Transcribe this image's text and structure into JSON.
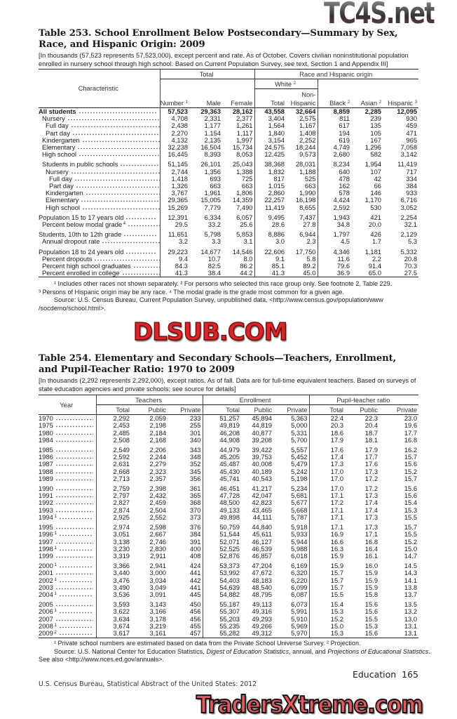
{
  "watermarks": {
    "top": "TC4S.net",
    "middle": "DLSUB.COM",
    "bottom": "TradersXtreme.com"
  },
  "t253": {
    "title": "Table 253. School Enrollment Below Postsecondary—Summary by Sex, Race, and Hispanic Origin: 2009",
    "headnote": "[In thousands (57,523 represents 57,523,000), except percent and rate. As of October. Covers civilian noninstitutional population enrolled in nursery school through high school. Based on Current Population Survey, see text, Section 1 and Appendix III]",
    "headers": {
      "characteristic": "Characteristic",
      "total": "Total",
      "race": "Race and Hispanic origin",
      "white": "White",
      "white_sup": "2",
      "number": "Number",
      "number_sup": "1",
      "male": "Male",
      "female": "Female",
      "wtotal": "Total",
      "nonhisp": "Non-Hispanic",
      "black": "Black",
      "black_sup": "2",
      "asian": "Asian",
      "asian_sup": "2",
      "hispanic": "Hispanic",
      "hispanic_sup": "3"
    },
    "rows": [
      {
        "label": "All students",
        "ind": 0,
        "bold": true,
        "v": [
          "57,523",
          "29,363",
          "28,162",
          "43,558",
          "32,664",
          "8,859",
          "2,285",
          "12,095"
        ]
      },
      {
        "label": "Nursery",
        "ind": 1,
        "v": [
          "4,708",
          "2,331",
          "2,377",
          "3,404",
          "2,575",
          "811",
          "239",
          "930"
        ]
      },
      {
        "label": "Full day",
        "ind": 2,
        "v": [
          "2,438",
          "1,177",
          "1,261",
          "1,564",
          "1,167",
          "617",
          "135",
          "459"
        ]
      },
      {
        "label": "Part day",
        "ind": 2,
        "v": [
          "2,270",
          "1,154",
          "1,117",
          "1,840",
          "1,408",
          "194",
          "105",
          "471"
        ]
      },
      {
        "label": "Kindergarten",
        "ind": 1,
        "v": [
          "4,132",
          "2,135",
          "1,997",
          "3,154",
          "2,252",
          "619",
          "167",
          "965"
        ]
      },
      {
        "label": "Elementary",
        "ind": 1,
        "v": [
          "32,238",
          "16,504",
          "15,734",
          "24,575",
          "18,244",
          "4,749",
          "1,296",
          "7,058"
        ]
      },
      {
        "label": "High school",
        "ind": 1,
        "v": [
          "16,445",
          "8,393",
          "8,053",
          "12,425",
          "9,573",
          "2,680",
          "582",
          "3,142"
        ]
      },
      {
        "label": "Students in public schools",
        "ind": 1,
        "gap": true,
        "v": [
          "51,145",
          "26,101",
          "25,043",
          "38,368",
          "28,031",
          "8,234",
          "1,954",
          "11,419"
        ]
      },
      {
        "label": "Nursery",
        "ind": 2,
        "v": [
          "2,744",
          "1,356",
          "1,388",
          "1,832",
          "1,188",
          "640",
          "107",
          "717"
        ]
      },
      {
        "label": "Full day",
        "ind": 3,
        "v": [
          "1,418",
          "693",
          "725",
          "817",
          "525",
          "478",
          "42",
          "334"
        ]
      },
      {
        "label": "Part day",
        "ind": 3,
        "v": [
          "1,326",
          "663",
          "663",
          "1,015",
          "663",
          "162",
          "66",
          "384"
        ]
      },
      {
        "label": "Kindergarten",
        "ind": 2,
        "v": [
          "3,767",
          "1,961",
          "1,806",
          "2,860",
          "1,990",
          "578",
          "146",
          "933"
        ]
      },
      {
        "label": "Elementary",
        "ind": 2,
        "v": [
          "29,365",
          "15,005",
          "14,359",
          "22,257",
          "16,198",
          "4,424",
          "1,170",
          "6,716"
        ]
      },
      {
        "label": "High school",
        "ind": 2,
        "v": [
          "15,269",
          "7,779",
          "7,490",
          "11,419",
          "8,655",
          "2,592",
          "530",
          "3,052"
        ]
      },
      {
        "label": "Population 15 to 17 years old",
        "ind": 0,
        "gap": true,
        "v": [
          "12,391",
          "6,334",
          "6,057",
          "9,495",
          "7,437",
          "1,943",
          "421",
          "2,254"
        ]
      },
      {
        "label": "Percent below modal grade",
        "sup": "4",
        "ind": 1,
        "v": [
          "29.5",
          "33.2",
          "25.6",
          "28.6",
          "27.8",
          "34.8",
          "20.0",
          "32.1"
        ]
      },
      {
        "label": "Students, 10th to 12th grade",
        "ind": 0,
        "gap": true,
        "v": [
          "11,651",
          "5,798",
          "5,853",
          "8,886",
          "6,944",
          "1,797",
          "426",
          "2,129"
        ]
      },
      {
        "label": "Annual dropout rate",
        "ind": 1,
        "v": [
          "3.2",
          "3.3",
          "3.1",
          "3.0",
          "2.3",
          "4.5",
          "1.7",
          "5.3"
        ]
      },
      {
        "label": "Population 18 to 24 years old",
        "ind": 0,
        "gap": true,
        "v": [
          "29,223",
          "14,677",
          "14,546",
          "22,606",
          "17,750",
          "4,346",
          "1,181",
          "5,332"
        ]
      },
      {
        "label": "Percent dropouts",
        "ind": 1,
        "v": [
          "9.4",
          "10.7",
          "8.0",
          "9.1",
          "5.8",
          "11.6",
          "2.2",
          "20.8"
        ]
      },
      {
        "label": "Percent high school graduates",
        "ind": 1,
        "v": [
          "84.3",
          "82.5",
          "86.2",
          "85.1",
          "89.2",
          "79.6",
          "91.4",
          "70.3"
        ]
      },
      {
        "label": "Percent enrolled in college",
        "ind": 1,
        "v": [
          "41.3",
          "38.4",
          "44.2",
          "41.3",
          "45.0",
          "36.9",
          "65.0",
          "27.5"
        ]
      }
    ],
    "footnotes": [
      "¹ Includes other races not shown separately. ² For persons who selected this race group only. See footnote 2, Table 229.",
      "³ Persons of Hispanic origin may be any race. ⁴ The modal grade is the grade most common for a given age.",
      "Source: U.S. Census Bureau, Current Population Survey, unpublished data, <http://www.census.gov/population/www",
      "/socdemo/school.html>."
    ]
  },
  "t254": {
    "title": "Table 254. Elementary and Secondary Schools—Teachers, Enrollment, and Pupil-Teacher Ratio: 1970 to 2009",
    "headnote": "[In thousands (2,292 represents 2,292,000), except ratios. As of fall. Data are for full-time  equivalent teachers. Based on surveys of state education agencies and private schools; see source for details]",
    "headers": {
      "year": "Year",
      "teachers": "Teachers",
      "enrollment": "Enrollment",
      "ratio": "Pupil-teacher ratio",
      "total": "Total",
      "public": "Public",
      "private": "Private"
    },
    "rows": [
      {
        "y": "1970",
        "v": [
          "2,292",
          "2,059",
          "233",
          "51,257",
          "45,894",
          "5,363",
          "22.4",
          "22.3",
          "23.0"
        ]
      },
      {
        "y": "1975",
        "v": [
          "2,453",
          "2,198",
          "255",
          "49,819",
          "44,819",
          "5,000",
          "20.3",
          "20.4",
          "19.6"
        ]
      },
      {
        "y": "1980",
        "v": [
          "2,485",
          "2,184",
          "301",
          "46,208",
          "40,877",
          "5,331",
          "18.6",
          "18.7",
          "17.7"
        ]
      },
      {
        "y": "1984",
        "v": [
          "2,508",
          "2,168",
          "340",
          "44,908",
          "39,208",
          "5,700",
          "17.9",
          "18.1",
          "16.8"
        ]
      },
      {
        "y": "1985",
        "gap": true,
        "v": [
          "2,549",
          "2,206",
          "343",
          "44,979",
          "39,422",
          "5,557",
          "17.6",
          "17.9",
          "16.2"
        ]
      },
      {
        "y": "1986",
        "v": [
          "2,592",
          "2,244",
          "348",
          "45,205",
          "39,753",
          "5,452",
          "17.4",
          "17.7",
          "15.7"
        ]
      },
      {
        "y": "1987",
        "v": [
          "2,631",
          "2,279",
          "352",
          "45,487",
          "40,008",
          "5,479",
          "17.3",
          "17.6",
          "15.6"
        ]
      },
      {
        "y": "1988",
        "v": [
          "2,668",
          "2,323",
          "345",
          "45,430",
          "40,189",
          "5,242",
          "17.0",
          "17.3",
          "15.2"
        ]
      },
      {
        "y": "1989",
        "v": [
          "2,713",
          "2,357",
          "356",
          "45,741",
          "40,543",
          "5,198",
          "17.0",
          "17.2",
          "15.7"
        ]
      },
      {
        "y": "1990",
        "gap": true,
        "v": [
          "2,759",
          "2,398",
          "361",
          "46,451",
          "41,217",
          "5,234",
          "17.0",
          "17.2",
          "15.6"
        ]
      },
      {
        "y": "1991",
        "v": [
          "2,797",
          "2,432",
          "365",
          "47,728",
          "42,047",
          "5,681",
          "17.1",
          "17.3",
          "15.6"
        ]
      },
      {
        "y": "1992",
        "v": [
          "2,827",
          "2,459",
          "368",
          "48,500",
          "42,823",
          "5,677",
          "17.2",
          "17.4",
          "15.4"
        ]
      },
      {
        "y": "1993",
        "v": [
          "2,874",
          "2,504",
          "370",
          "49,133",
          "43,465",
          "5,668",
          "17.1",
          "17.4",
          "15.3"
        ]
      },
      {
        "y": "1994",
        "sup": "1",
        "v": [
          "2,925",
          "2,552",
          "373",
          "49,898",
          "44,111",
          "5,787",
          "17.1",
          "17.3",
          "15.5"
        ]
      },
      {
        "y": "1995",
        "gap": true,
        "v": [
          "2,974",
          "2,598",
          "376",
          "50,759",
          "44,840",
          "5,918",
          "17.1",
          "17.3",
          "15.7"
        ]
      },
      {
        "y": "1996",
        "sup": "1",
        "v": [
          "3,051",
          "2,667",
          "384",
          "51,544",
          "45,611",
          "5,933",
          "16.9",
          "17.1",
          "15.5"
        ]
      },
      {
        "y": "1997",
        "v": [
          "3,138",
          "2,746",
          "391",
          "52,071",
          "46,127",
          "5,944",
          "16.6",
          "16.8",
          "15.2"
        ]
      },
      {
        "y": "1998",
        "sup": "1",
        "v": [
          "3,230",
          "2,830",
          "400",
          "52,525",
          "46,539",
          "5,988",
          "16.3",
          "16.4",
          "15.0"
        ]
      },
      {
        "y": "1999",
        "v": [
          "3,319",
          "2,911",
          "408",
          "52,876",
          "46,857",
          "6,018",
          "15.9",
          "16.1",
          "14.7"
        ]
      },
      {
        "y": "2000",
        "sup": "1",
        "gap": true,
        "v": [
          "3,366",
          "2,941",
          "424",
          "53,373",
          "47,204",
          "6,169",
          "15.9",
          "16.0",
          "14.5"
        ]
      },
      {
        "y": "2001",
        "v": [
          "3,440",
          "3,000",
          "441",
          "53,992",
          "47,672",
          "6,320",
          "15.7",
          "15.9",
          "14.3"
        ]
      },
      {
        "y": "2002",
        "sup": "1",
        "v": [
          "3,476",
          "3,034",
          "442",
          "54,403",
          "48,183",
          "6,220",
          "15.7",
          "15.9",
          "14.1"
        ]
      },
      {
        "y": "2003",
        "v": [
          "3,490",
          "3,049",
          "441",
          "54,639",
          "48,540",
          "6,099",
          "15.7",
          "15.9",
          "13.8"
        ]
      },
      {
        "y": "2004",
        "sup": "1",
        "v": [
          "3,536",
          "3,091",
          "445",
          "54,882",
          "48,795",
          "6,087",
          "15.5",
          "15.8",
          "13.7"
        ]
      },
      {
        "y": "2005",
        "gap": true,
        "v": [
          "3,593",
          "3,143",
          "450",
          "55,187",
          "49,113",
          "6,073",
          "15.4",
          "15.6",
          "13.5"
        ]
      },
      {
        "y": "2006",
        "sup": "1",
        "v": [
          "3,622",
          "3,166",
          "456",
          "55,307",
          "49,316",
          "5,991",
          "15.3",
          "15.6",
          "13.2"
        ]
      },
      {
        "y": "2007",
        "v": [
          "3,634",
          "3,178",
          "456",
          "55,203",
          "49,293",
          "5,910",
          "15.2",
          "15.5",
          "13.0"
        ]
      },
      {
        "y": "2008",
        "sup": "1",
        "v": [
          "3,674",
          "3,219",
          "455",
          "55,235",
          "49,266",
          "5,969",
          "15.0",
          "15.3",
          "13.1"
        ]
      },
      {
        "y": "2009",
        "sup": "2",
        "v": [
          "3,617",
          "3,161",
          "457",
          "55,282",
          "49,312",
          "5,970",
          "15.3",
          "15.6",
          "13.1"
        ]
      }
    ],
    "footnote1": "¹ Private school numbers are estimated based on data from the Private School Universe Survey. ² Projection.",
    "source_a": "Source: U.S. National Center for Education Statistics, ",
    "source_i1": "Digest of Education Statistics",
    "source_b": ", annual, and ",
    "source_i2": "Projections of Educational Statistics",
    "source_c": ". See also <http://www.nces.ed.gov/annuals>."
  },
  "footer": {
    "section": "Education",
    "page": "165",
    "publisher": "U.S. Census Bureau, Statistical Abstract of the United States: 2012"
  }
}
